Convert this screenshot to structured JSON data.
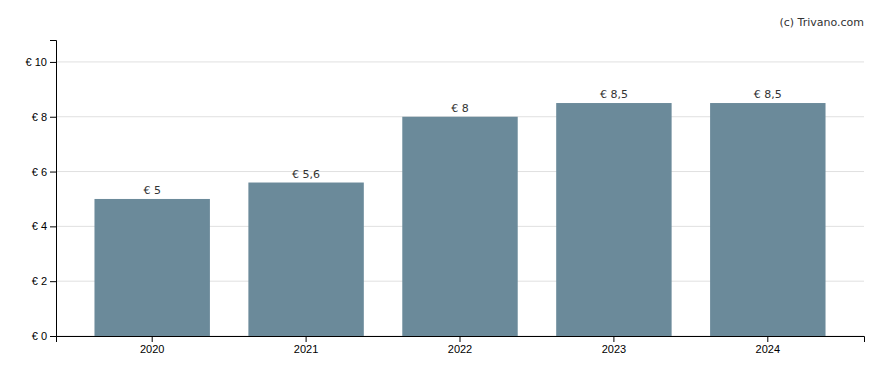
{
  "chart_data": {
    "type": "bar",
    "categories": [
      "2020",
      "2021",
      "2022",
      "2023",
      "2024"
    ],
    "values": [
      5.0,
      5.6,
      8.0,
      8.5,
      8.5
    ],
    "value_labels": [
      "€ 5",
      "€ 5,6",
      "€ 8",
      "€ 8,5",
      "€ 8,5"
    ],
    "color": "#6b8a9a",
    "ylim": [
      0,
      10.8
    ],
    "yticks": [
      {
        "value": 0,
        "label": "€ 0"
      },
      {
        "value": 2,
        "label": "€ 2"
      },
      {
        "value": 4,
        "label": "€ 4"
      },
      {
        "value": 6,
        "label": "€ 6"
      },
      {
        "value": 8,
        "label": "€ 8"
      },
      {
        "value": 10,
        "label": "€ 10"
      }
    ],
    "grid": true,
    "data_labels": true,
    "annotations": [
      "(c) Trivano.com"
    ]
  }
}
